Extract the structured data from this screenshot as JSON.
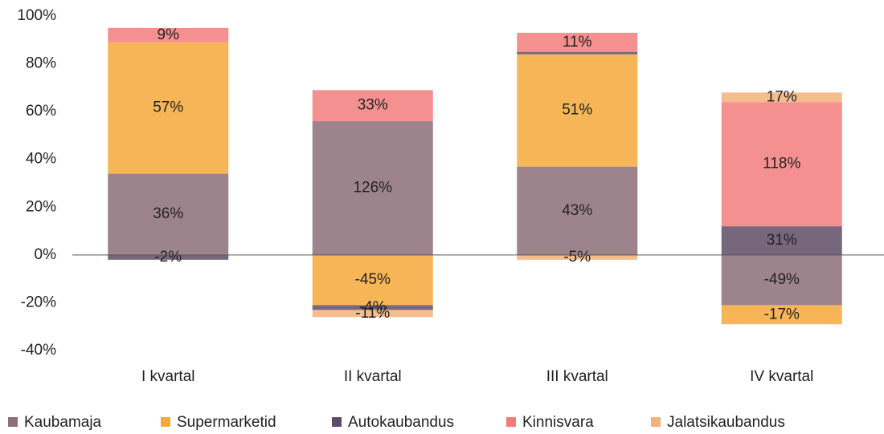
{
  "chart_data": {
    "type": "stacked_bar",
    "categories": [
      "I kvartal",
      "II kvartal",
      "III kvartal",
      "IV kvartal"
    ],
    "series": [
      {
        "name": "Kaubamaja",
        "color": "#8c6f78",
        "values": [
          34,
          56,
          37,
          -21
        ],
        "labels": [
          "36%",
          "126%",
          "43%",
          "-49%"
        ]
      },
      {
        "name": "Supermarketid",
        "color": "#f4a93a",
        "values": [
          55,
          -21,
          47,
          -8
        ],
        "labels": [
          "57%",
          "-45%",
          "51%",
          "-17%"
        ]
      },
      {
        "name": "Autokaubandus",
        "color": "#5e4c66",
        "values": [
          -2,
          -2,
          1,
          12
        ],
        "labels": [
          "-2%",
          "-4%",
          null,
          "31%"
        ]
      },
      {
        "name": "Kinnisvara",
        "color": "#f27c7c",
        "values": [
          6,
          13,
          8,
          52
        ],
        "labels": [
          "9%",
          "33%",
          "11%",
          "118%"
        ]
      },
      {
        "name": "Jalatsikaubandus",
        "color": "#f2b27a",
        "values": [
          null,
          -3,
          -2,
          4
        ],
        "labels": [
          null,
          "-11%",
          "-5%",
          "17%"
        ]
      }
    ],
    "ylim": [
      -40,
      100
    ],
    "yticks": [
      {
        "value": -40,
        "label": "-40%"
      },
      {
        "value": -20,
        "label": "-20%"
      },
      {
        "value": 0,
        "label": "0%"
      },
      {
        "value": 20,
        "label": "20%"
      },
      {
        "value": 40,
        "label": "40%"
      },
      {
        "value": 60,
        "label": "60%"
      },
      {
        "value": 80,
        "label": "80%"
      },
      {
        "value": 100,
        "label": "100%"
      }
    ],
    "legend": "bottom"
  }
}
